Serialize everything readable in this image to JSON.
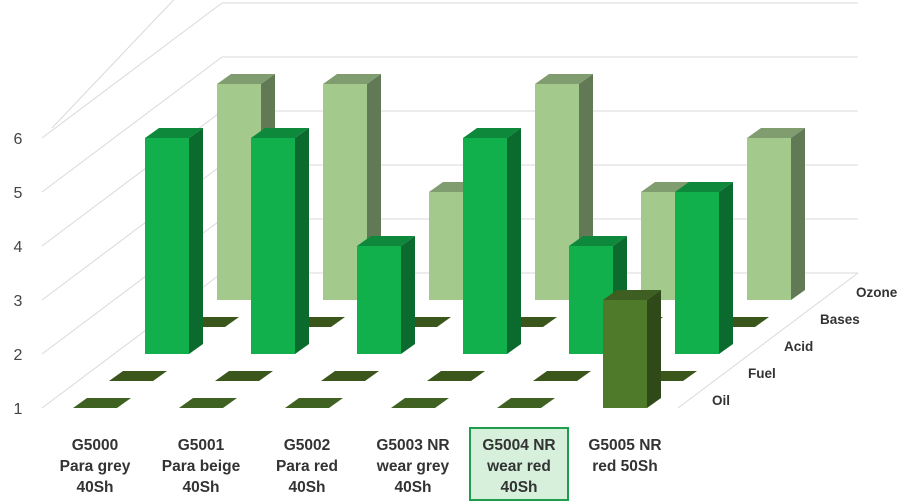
{
  "chart_data": {
    "type": "bar3d",
    "categories": [
      [
        "G5000",
        "Para grey",
        "40Sh"
      ],
      [
        "G5001",
        "Para beige",
        "40Sh"
      ],
      [
        "G5002",
        "Para red",
        "40Sh"
      ],
      [
        "G5003 NR",
        "wear grey",
        "40Sh"
      ],
      [
        "G5004 NR",
        "wear red",
        "40Sh"
      ],
      [
        "G5005 NR",
        "red 50Sh"
      ]
    ],
    "highlighted_category": 4,
    "series": [
      {
        "name": "Oil",
        "values": [
          1,
          1,
          1,
          1,
          1,
          3
        ]
      },
      {
        "name": "Fuel",
        "values": [
          1,
          1,
          1,
          1,
          1,
          1
        ]
      },
      {
        "name": "Acid",
        "values": [
          5,
          5,
          3,
          5,
          3,
          4
        ]
      },
      {
        "name": "Bases",
        "values": [
          1,
          1,
          1,
          1,
          1,
          1
        ]
      },
      {
        "name": "Ozone",
        "values": [
          5,
          5,
          3,
          5,
          3,
          4
        ]
      }
    ],
    "y_ticks": [
      "1",
      "2",
      "3",
      "4",
      "5",
      "6"
    ],
    "ylim": [
      1,
      6
    ],
    "grid": true,
    "colors": {
      "Oil": "#4f7a2a",
      "Acid": "#12b04c",
      "Ozone": "#a3c98d",
      "floor": "#4a6b22",
      "grid": "#d9d9d9",
      "highlight_fill": "#d6f0dc",
      "highlight_border": "#1e9e4c"
    }
  }
}
